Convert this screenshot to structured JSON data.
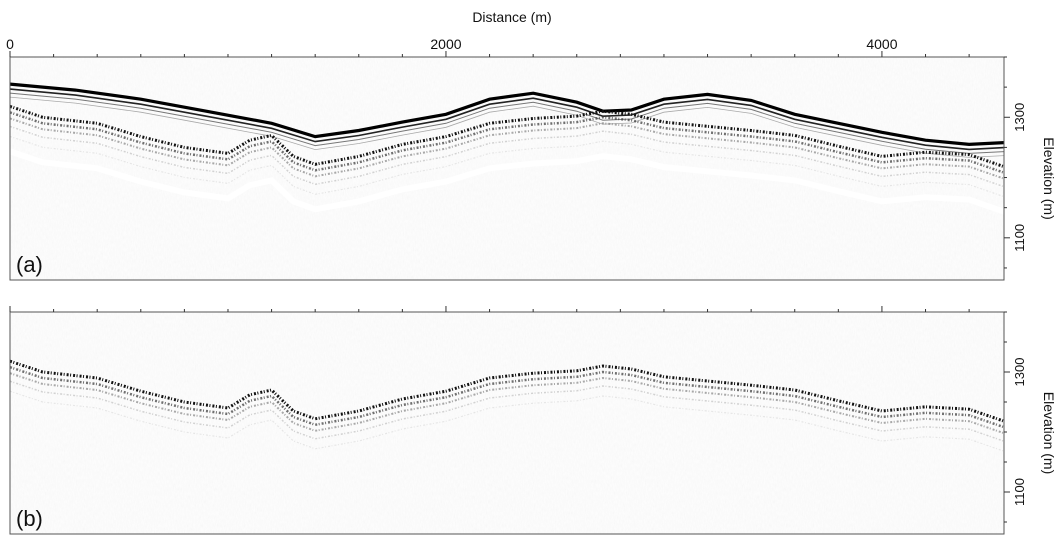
{
  "chart_data": [
    {
      "panel": "(a)",
      "type": "line",
      "title": "",
      "xlabel": "Distance (m)",
      "ylabel": "Elevation (m)",
      "xlim": [
        0,
        4560
      ],
      "ylim": [
        1030,
        1400
      ],
      "x_ticks": [
        0,
        2000,
        4000
      ],
      "x_tick_labels": [
        "0",
        "2000",
        "4000"
      ],
      "y_ticks": [
        1300,
        1100
      ],
      "y_tick_labels": [
        "1300",
        "1100"
      ],
      "grid": false,
      "series": [
        {
          "x": [
            0,
            300,
            600,
            900,
            1200,
            1400,
            1600,
            1800,
            2000,
            2200,
            2400,
            2600,
            2720,
            2850,
            3000,
            3200,
            3400,
            3600,
            3800,
            4000,
            4200,
            4400,
            4560
          ],
          "y": [
            1355,
            1345,
            1330,
            1310,
            1290,
            1268,
            1278,
            1292,
            1305,
            1330,
            1340,
            1325,
            1310,
            1312,
            1330,
            1338,
            1328,
            1305,
            1290,
            1275,
            1262,
            1255,
            1258
          ]
        },
        {
          "x": [
            0,
            150,
            400,
            600,
            800,
            1000,
            1100,
            1200,
            1300,
            1400,
            1600,
            1800,
            2000,
            2200,
            2400,
            2600,
            2720,
            2850,
            3000,
            3200,
            3400,
            3600,
            3800,
            4000,
            4200,
            4400,
            4560
          ],
          "y": [
            1318,
            1300,
            1290,
            1268,
            1250,
            1240,
            1262,
            1270,
            1235,
            1222,
            1235,
            1255,
            1268,
            1290,
            1298,
            1302,
            1310,
            1305,
            1292,
            1285,
            1278,
            1270,
            1252,
            1235,
            1242,
            1238,
            1218
          ]
        }
      ]
    },
    {
      "panel": "(b)",
      "type": "line",
      "title": "",
      "xlabel": "",
      "ylabel": "Elevation (m)",
      "xlim": [
        0,
        4560
      ],
      "ylim": [
        1030,
        1400
      ],
      "y_ticks": [
        1300,
        1100
      ],
      "y_tick_labels": [
        "1300",
        "1100"
      ],
      "grid": false,
      "series": [
        {
          "x": [
            0,
            150,
            400,
            600,
            800,
            1000,
            1100,
            1200,
            1300,
            1400,
            1600,
            1800,
            2000,
            2200,
            2400,
            2600,
            2720,
            2850,
            3000,
            3200,
            3400,
            3600,
            3800,
            4000,
            4200,
            4400,
            4560
          ],
          "y": [
            1318,
            1300,
            1290,
            1268,
            1250,
            1240,
            1262,
            1270,
            1235,
            1222,
            1235,
            1255,
            1268,
            1290,
            1298,
            1302,
            1310,
            1305,
            1292,
            1285,
            1278,
            1270,
            1252,
            1235,
            1242,
            1238,
            1218
          ]
        }
      ]
    }
  ]
}
